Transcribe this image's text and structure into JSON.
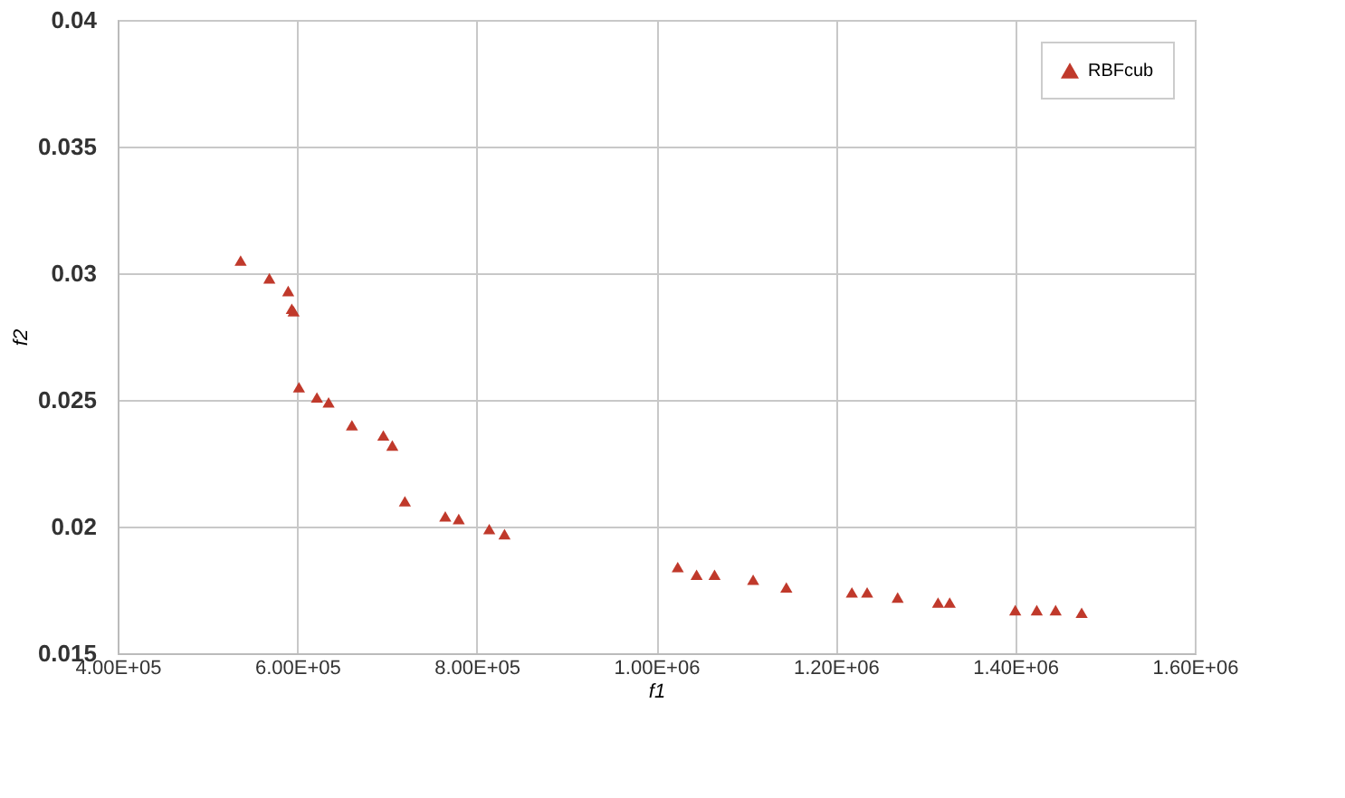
{
  "chart_data": {
    "type": "scatter",
    "xlabel": "f1",
    "ylabel": "f2",
    "marker": "triangle",
    "grid": true,
    "legend": "top right",
    "xlim": [
      400000,
      1600000
    ],
    "ylim": [
      0.015,
      0.04
    ],
    "xticks": [
      {
        "value": 400000,
        "label": "4.00E+05"
      },
      {
        "value": 600000,
        "label": "6.00E+05"
      },
      {
        "value": 800000,
        "label": "8.00E+05"
      },
      {
        "value": 1000000,
        "label": "1.00E+06"
      },
      {
        "value": 1200000,
        "label": "1.20E+06"
      },
      {
        "value": 1400000,
        "label": "1.40E+06"
      },
      {
        "value": 1600000,
        "label": "1.60E+06"
      }
    ],
    "yticks": [
      0.015,
      0.02,
      0.025,
      0.03,
      0.035,
      0.04
    ],
    "series": [
      {
        "name": "RBFcub",
        "color": "#c0392b",
        "x": [
          537000,
          569000,
          590000,
          594000,
          596000,
          602000,
          622000,
          635000,
          661000,
          696000,
          706000,
          720000,
          765000,
          780000,
          814000,
          831000,
          1024000,
          1045000,
          1065000,
          1108000,
          1145000,
          1218000,
          1235000,
          1269000,
          1314000,
          1327000,
          1400000,
          1424000,
          1445000,
          1474000
        ],
        "values": [
          0.0305,
          0.0298,
          0.0293,
          0.0286,
          0.0285,
          0.0255,
          0.0251,
          0.0249,
          0.024,
          0.0236,
          0.0232,
          0.021,
          0.0204,
          0.0203,
          0.0199,
          0.0197,
          0.0184,
          0.0181,
          0.0181,
          0.0179,
          0.0176,
          0.0174,
          0.0174,
          0.0172,
          0.017,
          0.017,
          0.0167,
          0.0167,
          0.0167,
          0.0166
        ]
      }
    ]
  }
}
